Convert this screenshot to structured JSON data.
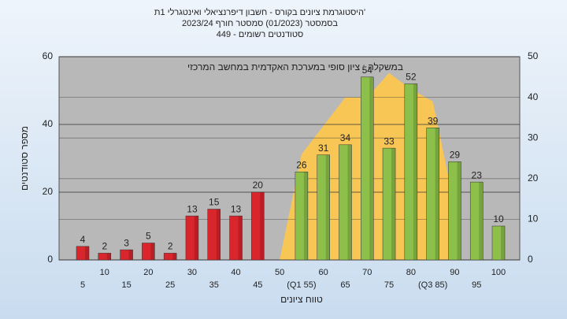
{
  "chart_data": {
    "type": "bar",
    "title": "היסטוגרמת ציונים בקורס - חשבון דיפרנציאלי ואינטגרלי 1ת'",
    "subtitle": "בסמסטר  (01/2023)  סמסטר חורף 2023/24",
    "subtitle2": "סטודנטים רשומים - 449",
    "annotation": "במשקלה : ציון סופי במערכת האקדמית במחשב המרכזי",
    "x_label": "טווח ציונים",
    "y_label": "מספר סטודנטים",
    "categories": [
      "5",
      "10",
      "15",
      "20",
      "25",
      "30",
      "35",
      "40",
      "45",
      "50",
      "(Q1 55)",
      "60",
      "65",
      "70",
      "75",
      "80",
      "(Q3 85)",
      "90",
      "95",
      "100"
    ],
    "values": [
      4,
      2,
      3,
      5,
      2,
      13,
      15,
      13,
      20,
      null,
      26,
      31,
      34,
      54,
      33,
      52,
      39,
      29,
      23,
      10
    ],
    "bar_colors": [
      "#d9252c",
      "#d9252c",
      "#d9252c",
      "#d9252c",
      "#d9252c",
      "#d9252c",
      "#d9252c",
      "#d9252c",
      "#d9252c",
      "#d9252c",
      "#8cc04a",
      "#8cc04a",
      "#8cc04a",
      "#8cc04a",
      "#8cc04a",
      "#8cc04a",
      "#8cc04a",
      "#8cc04a",
      "#8cc04a",
      "#8cc04a"
    ],
    "area": {
      "axis": "y2",
      "color": "#ffc84a",
      "values": [
        null,
        null,
        null,
        null,
        null,
        null,
        null,
        null,
        null,
        0,
        26,
        33,
        40,
        40,
        46,
        42,
        39,
        13,
        null,
        null
      ]
    },
    "ylim": [
      0,
      60
    ],
    "yticks": [
      0,
      20,
      40,
      60
    ],
    "y2lim": [
      0,
      50
    ],
    "y2ticks": [
      0,
      10,
      20,
      30,
      40,
      50
    ],
    "grid": true
  }
}
